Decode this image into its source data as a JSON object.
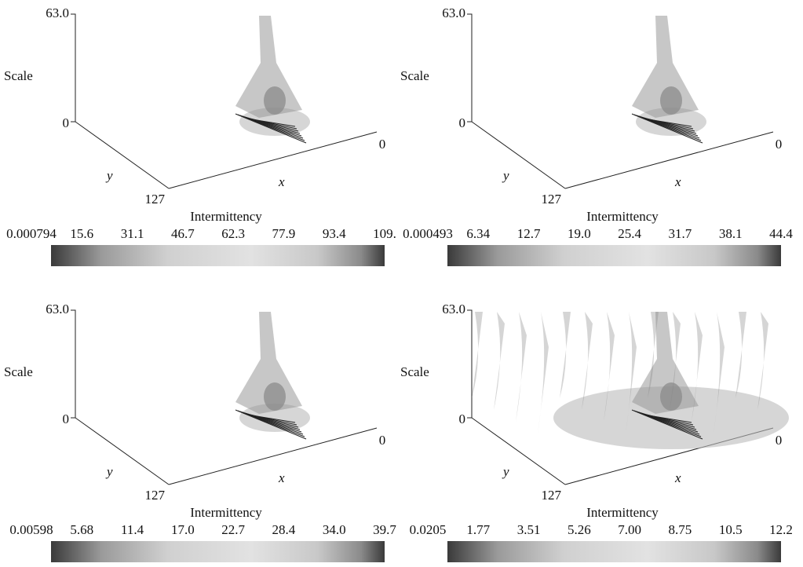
{
  "panels": [
    {
      "z_top": "63.0",
      "z_label": "Scale",
      "z_bottom": "0",
      "y_label": "y",
      "y_end": "127",
      "x_label": "x",
      "x_end": "0",
      "colorbar": {
        "title": "Intermittency",
        "ticks": [
          "0.000794",
          "15.6",
          "31.1",
          "46.7",
          "62.3",
          "77.9",
          "93.4",
          "109."
        ]
      }
    },
    {
      "z_top": "63.0",
      "z_label": "Scale",
      "z_bottom": "0",
      "y_label": "y",
      "y_end": "127",
      "x_label": "x",
      "x_end": "0",
      "colorbar": {
        "title": "Intermittency",
        "ticks": [
          "0.000493",
          "6.34",
          "12.7",
          "19.0",
          "25.4",
          "31.7",
          "38.1",
          "44.4"
        ]
      }
    },
    {
      "z_top": "63.0",
      "z_label": "Scale",
      "z_bottom": "0",
      "y_label": "y",
      "y_end": "127",
      "x_label": "x",
      "x_end": "0",
      "colorbar": {
        "title": "Intermittency",
        "ticks": [
          "0.00598",
          "5.68",
          "11.4",
          "17.0",
          "22.7",
          "28.4",
          "34.0",
          "39.7"
        ]
      }
    },
    {
      "z_top": "63.0",
      "z_label": "Scale",
      "z_bottom": "0",
      "y_label": "y",
      "y_end": "127",
      "x_label": "x",
      "x_end": "0",
      "colorbar": {
        "title": "Intermittency",
        "ticks": [
          "0.0205",
          "1.77",
          "3.51",
          "5.26",
          "7.00",
          "8.75",
          "10.5",
          "12.2"
        ]
      }
    }
  ]
}
